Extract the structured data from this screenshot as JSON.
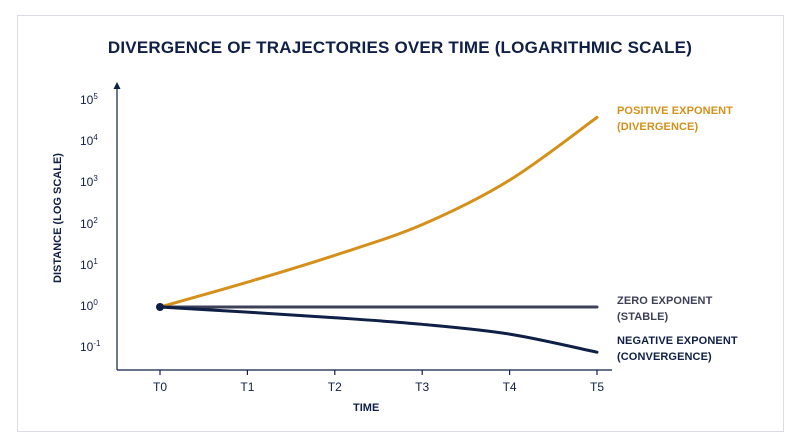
{
  "title": "DIVERGENCE OF TRAJECTORIES OVER TIME (LOGARITHMIC SCALE)",
  "chart_data": {
    "type": "line",
    "title": "DIVERGENCE OF TRAJECTORIES OVER TIME (LOGARITHMIC SCALE)",
    "xlabel": "TIME",
    "ylabel": "DISTANCE (LOG SCALE)",
    "x": [
      "T0",
      "T1",
      "T2",
      "T3",
      "T4",
      "T5"
    ],
    "y_scale": "log",
    "ylim": [
      0.08,
      100000
    ],
    "grid": false,
    "y_ticks": [
      {
        "base": "10",
        "exp": "5"
      },
      {
        "base": "10",
        "exp": "4"
      },
      {
        "base": "10",
        "exp": "3"
      },
      {
        "base": "10",
        "exp": "2"
      },
      {
        "base": "10",
        "exp": "1"
      },
      {
        "base": "10",
        "exp": "0"
      },
      {
        "base": "10",
        "exp": "-1"
      }
    ],
    "y_tick_values": [
      100000,
      10000,
      1000,
      100,
      10,
      1,
      0.1
    ],
    "start_point": {
      "x": "T0",
      "y": 1
    },
    "series": [
      {
        "name": [
          "POSITIVE EXPONENT",
          "(DIVERGENCE)"
        ],
        "color": "#d4901a",
        "values": [
          1,
          4,
          18,
          100,
          1200,
          40000
        ]
      },
      {
        "name": [
          "ZERO EXPONENT",
          "(STABLE)"
        ],
        "color": "#3c4157",
        "values": [
          1,
          1,
          1,
          1,
          1,
          1
        ]
      },
      {
        "name": [
          "NEGATIVE EXPONENT",
          "(CONVERGENCE)"
        ],
        "color": "#0f1f45",
        "values": [
          1,
          0.75,
          0.55,
          0.38,
          0.22,
          0.08
        ]
      }
    ]
  }
}
